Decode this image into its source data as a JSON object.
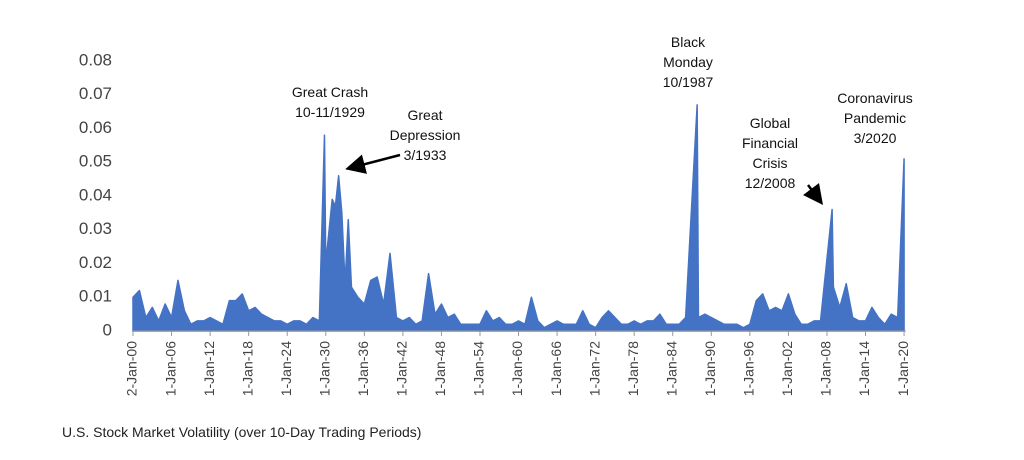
{
  "chart_data": {
    "type": "area",
    "caption": "U.S. Stock Market Volatility (over 10-Day Trading Periods)",
    "annotations": [
      {
        "lines": [
          "Great Crash",
          "10-11/1929"
        ]
      },
      {
        "lines": [
          "Great",
          "Depression",
          "3/1933"
        ]
      },
      {
        "lines": [
          "Black",
          "Monday",
          "10/1987"
        ]
      },
      {
        "lines": [
          "Global",
          "Financial",
          "Crisis",
          "12/2008"
        ]
      },
      {
        "lines": [
          "Coronavirus",
          "Pandemic",
          "3/2020"
        ]
      }
    ],
    "series": [
      {
        "color": "#4472c4",
        "x": [
          1900,
          1901,
          1902,
          1903,
          1904,
          1905,
          1906,
          1907,
          1908,
          1909,
          1910,
          1911,
          1912,
          1913,
          1914,
          1915,
          1916,
          1917,
          1918,
          1919,
          1920,
          1921,
          1922,
          1923,
          1924,
          1925,
          1926,
          1927,
          1928,
          1929,
          1929.8,
          1930,
          1931,
          1931.5,
          1932,
          1932.5,
          1933,
          1933.5,
          1934,
          1935,
          1936,
          1937,
          1938,
          1939,
          1940,
          1941,
          1942,
          1943,
          1944,
          1945,
          1946,
          1947,
          1948,
          1949,
          1950,
          1951,
          1952,
          1953,
          1954,
          1955,
          1956,
          1957,
          1958,
          1959,
          1960,
          1961,
          1962,
          1963,
          1964,
          1965,
          1966,
          1967,
          1968,
          1969,
          1970,
          1971,
          1972,
          1973,
          1974,
          1975,
          1976,
          1977,
          1978,
          1979,
          1980,
          1981,
          1982,
          1983,
          1984,
          1985,
          1986,
          1987.8,
          1988,
          1989,
          1990,
          1991,
          1992,
          1993,
          1994,
          1995,
          1996,
          1997,
          1998,
          1999,
          2000,
          2001,
          2002,
          2003,
          2004,
          2005,
          2006,
          2007,
          2008.8,
          2009,
          2010,
          2011,
          2012,
          2013,
          2014,
          2015,
          2016,
          2017,
          2018,
          2019,
          2020
        ],
        "values": [
          0.01,
          0.012,
          0.004,
          0.007,
          0.003,
          0.008,
          0.004,
          0.015,
          0.006,
          0.002,
          0.003,
          0.003,
          0.004,
          0.003,
          0.002,
          0.009,
          0.009,
          0.011,
          0.006,
          0.007,
          0.005,
          0.004,
          0.003,
          0.003,
          0.002,
          0.003,
          0.003,
          0.002,
          0.004,
          0.003,
          0.058,
          0.02,
          0.039,
          0.037,
          0.046,
          0.035,
          0.014,
          0.033,
          0.013,
          0.01,
          0.008,
          0.015,
          0.016,
          0.008,
          0.023,
          0.004,
          0.003,
          0.004,
          0.002,
          0.003,
          0.017,
          0.005,
          0.008,
          0.004,
          0.005,
          0.002,
          0.002,
          0.002,
          0.002,
          0.006,
          0.003,
          0.004,
          0.002,
          0.002,
          0.003,
          0.002,
          0.01,
          0.003,
          0.001,
          0.002,
          0.003,
          0.002,
          0.002,
          0.002,
          0.006,
          0.002,
          0.001,
          0.004,
          0.006,
          0.004,
          0.002,
          0.002,
          0.003,
          0.002,
          0.003,
          0.003,
          0.005,
          0.002,
          0.002,
          0.002,
          0.004,
          0.067,
          0.004,
          0.005,
          0.004,
          0.003,
          0.002,
          0.002,
          0.002,
          0.001,
          0.002,
          0.009,
          0.011,
          0.006,
          0.007,
          0.006,
          0.011,
          0.005,
          0.002,
          0.002,
          0.003,
          0.003,
          0.036,
          0.013,
          0.007,
          0.014,
          0.004,
          0.003,
          0.003,
          0.007,
          0.004,
          0.002,
          0.005,
          0.004,
          0.051
        ]
      }
    ],
    "xlim": [
      1900,
      2020.3
    ],
    "xticks": [
      {
        "value": 1900,
        "label": "2-Jan-00"
      },
      {
        "value": 1906,
        "label": "1-Jan-06"
      },
      {
        "value": 1912,
        "label": "1-Jan-12"
      },
      {
        "value": 1918,
        "label": "1-Jan-18"
      },
      {
        "value": 1924,
        "label": "1-Jan-24"
      },
      {
        "value": 1930,
        "label": "1-Jan-30"
      },
      {
        "value": 1936,
        "label": "1-Jan-36"
      },
      {
        "value": 1942,
        "label": "1-Jan-42"
      },
      {
        "value": 1948,
        "label": "1-Jan-48"
      },
      {
        "value": 1954,
        "label": "1-Jan-54"
      },
      {
        "value": 1960,
        "label": "1-Jan-60"
      },
      {
        "value": 1966,
        "label": "1-Jan-66"
      },
      {
        "value": 1972,
        "label": "1-Jan-72"
      },
      {
        "value": 1978,
        "label": "1-Jan-78"
      },
      {
        "value": 1984,
        "label": "1-Jan-84"
      },
      {
        "value": 1990,
        "label": "1-Jan-90"
      },
      {
        "value": 1996,
        "label": "1-Jan-96"
      },
      {
        "value": 2002,
        "label": "1-Jan-02"
      },
      {
        "value": 2008,
        "label": "1-Jan-08"
      },
      {
        "value": 2014,
        "label": "1-Jan-14"
      },
      {
        "value": 2020,
        "label": "1-Jan-20"
      }
    ],
    "ylim": [
      0,
      0.08
    ],
    "yticks": [
      0,
      0.01,
      0.02,
      0.03,
      0.04,
      0.05,
      0.06,
      0.07,
      0.08
    ],
    "grid": false
  }
}
